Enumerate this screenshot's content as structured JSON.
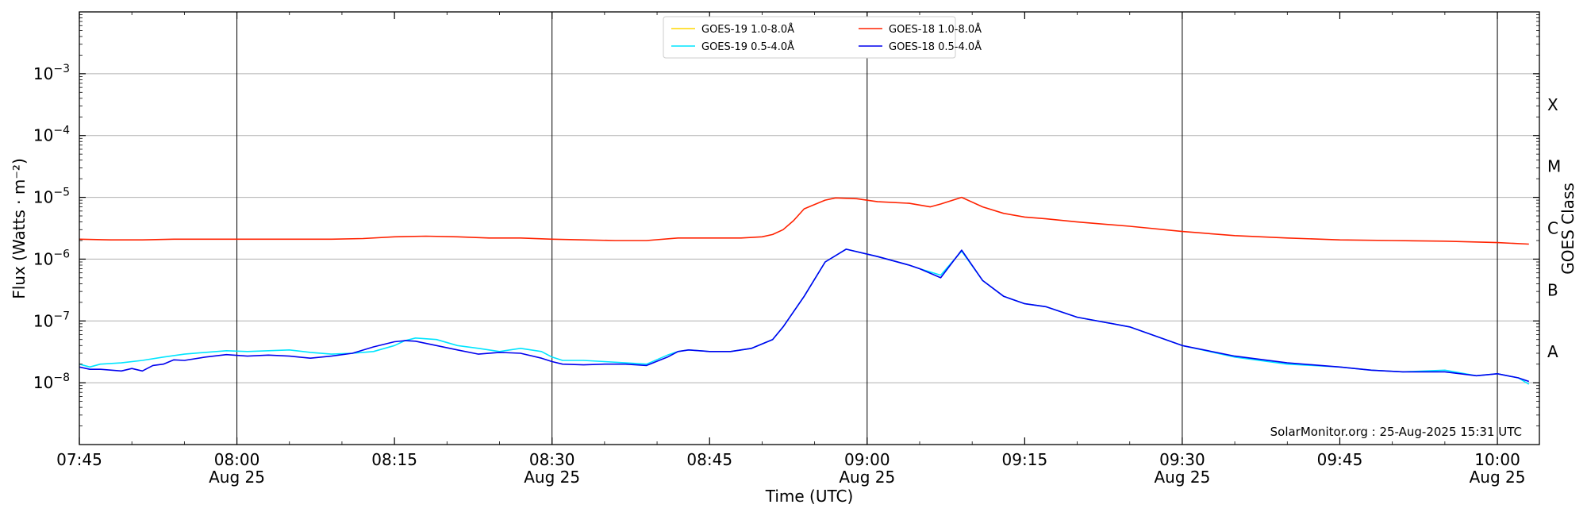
{
  "chart_data": {
    "type": "line",
    "title": "",
    "xlabel": "Time (UTC)",
    "ylabel": "Flux (Watts · m⁻²)",
    "y2label": "GOES Class",
    "yscale": "log",
    "ylim_exp": [
      -9,
      -2
    ],
    "xlim": [
      "07:45",
      "10:04"
    ],
    "grid": true,
    "legend_position": "top-center",
    "credit": "SolarMonitor.org : 25-Aug-2025 15:31 UTC",
    "y_ticks": [
      {
        "exp": -8,
        "base": "10",
        "sup": "−8"
      },
      {
        "exp": -7,
        "base": "10",
        "sup": "−7"
      },
      {
        "exp": -6,
        "base": "10",
        "sup": "−6"
      },
      {
        "exp": -5,
        "base": "10",
        "sup": "−5"
      },
      {
        "exp": -4,
        "base": "10",
        "sup": "−4"
      },
      {
        "exp": -3,
        "base": "10",
        "sup": "−3"
      }
    ],
    "x_ticks": [
      {
        "t": 0,
        "time": "07:45",
        "date": ""
      },
      {
        "t": 15,
        "time": "08:00",
        "date": "Aug 25"
      },
      {
        "t": 30,
        "time": "08:15",
        "date": ""
      },
      {
        "t": 45,
        "time": "08:30",
        "date": "Aug 25"
      },
      {
        "t": 60,
        "time": "08:45",
        "date": ""
      },
      {
        "t": 75,
        "time": "09:00",
        "date": "Aug 25"
      },
      {
        "t": 90,
        "time": "09:15",
        "date": ""
      },
      {
        "t": 105,
        "time": "09:30",
        "date": "Aug 25"
      },
      {
        "t": 120,
        "time": "09:45",
        "date": ""
      },
      {
        "t": 135,
        "time": "10:00",
        "date": "Aug 25"
      }
    ],
    "vlines_minutes": [
      15,
      45,
      75,
      105,
      135
    ],
    "goes_classes": [
      {
        "label": "A",
        "exp": -8
      },
      {
        "label": "B",
        "exp": -7
      },
      {
        "label": "C",
        "exp": -6
      },
      {
        "label": "M",
        "exp": -5
      },
      {
        "label": "X",
        "exp": -4
      }
    ],
    "legend": [
      {
        "name": "GOES-19 1.0-8.0Å",
        "color": "#ffd700"
      },
      {
        "name": "GOES-19 0.5-4.0Å",
        "color": "#00e5ff"
      },
      {
        "name": "GOES-18 1.0-8.0Å",
        "color": "#ff2200"
      },
      {
        "name": "GOES-18 0.5-4.0Å",
        "color": "#0000ee"
      }
    ],
    "series": [
      {
        "name": "GOES-18 1.0-8.0Å",
        "color": "#ff2200",
        "x": [
          0,
          3,
          6,
          9,
          12,
          15,
          18,
          21,
          24,
          27,
          30,
          33,
          36,
          39,
          42,
          45,
          48,
          51,
          54,
          57,
          60,
          63,
          65,
          66,
          67,
          68,
          69,
          71,
          72,
          74,
          76,
          79,
          80,
          81,
          82,
          84,
          86,
          88,
          90,
          92,
          95,
          100,
          105,
          110,
          115,
          120,
          125,
          130,
          135,
          138
        ],
        "y": [
          2.1e-06,
          2.05e-06,
          2.05e-06,
          2.1e-06,
          2.1e-06,
          2.1e-06,
          2.1e-06,
          2.1e-06,
          2.1e-06,
          2.15e-06,
          2.3e-06,
          2.35e-06,
          2.3e-06,
          2.2e-06,
          2.2e-06,
          2.1e-06,
          2.05e-06,
          2e-06,
          2e-06,
          2.2e-06,
          2.2e-06,
          2.2e-06,
          2.3e-06,
          2.5e-06,
          3e-06,
          4.2e-06,
          6.5e-06,
          9e-06,
          9.8e-06,
          9.5e-06,
          8.5e-06,
          8e-06,
          7.5e-06,
          7e-06,
          7.8e-06,
          1e-05,
          7e-06,
          5.5e-06,
          4.8e-06,
          4.5e-06,
          4e-06,
          3.4e-06,
          2.8e-06,
          2.4e-06,
          2.2e-06,
          2.05e-06,
          2e-06,
          1.95e-06,
          1.85e-06,
          1.75e-06
        ]
      },
      {
        "name": "GOES-19 0.5-4.0Å",
        "color": "#00e5ff",
        "x": [
          0,
          1,
          2,
          4,
          6,
          8,
          10,
          12,
          14,
          16,
          18,
          20,
          22,
          24,
          26,
          28,
          30,
          31,
          32,
          34,
          36,
          38,
          40,
          42,
          44,
          45,
          46,
          48,
          50,
          52,
          54,
          56,
          57,
          58,
          60,
          62,
          64,
          66,
          67,
          69,
          71,
          73,
          76,
          79,
          80,
          82,
          84,
          86,
          88,
          90,
          92,
          95,
          100,
          105,
          110,
          115,
          120,
          123,
          126,
          130,
          133,
          135,
          137,
          138
        ],
        "y": [
          2e-08,
          1.8e-08,
          2e-08,
          2.1e-08,
          2.3e-08,
          2.6e-08,
          2.9e-08,
          3.1e-08,
          3.3e-08,
          3.2e-08,
          3.3e-08,
          3.4e-08,
          3.1e-08,
          2.9e-08,
          3e-08,
          3.2e-08,
          4e-08,
          4.8e-08,
          5.3e-08,
          5e-08,
          4e-08,
          3.6e-08,
          3.2e-08,
          3.6e-08,
          3.2e-08,
          2.6e-08,
          2.3e-08,
          2.3e-08,
          2.2e-08,
          2.1e-08,
          2e-08,
          2.8e-08,
          3.2e-08,
          3.4e-08,
          3.2e-08,
          3.2e-08,
          3.6e-08,
          5e-08,
          8e-08,
          2.5e-07,
          9e-07,
          1.45e-06,
          1.1e-06,
          8e-07,
          7e-07,
          5.5e-07,
          1.35e-06,
          4.5e-07,
          2.5e-07,
          1.9e-07,
          1.7e-07,
          1.15e-07,
          8e-08,
          4e-08,
          2.6e-08,
          2e-08,
          1.8e-08,
          1.6e-08,
          1.5e-08,
          1.6e-08,
          1.3e-08,
          1.4e-08,
          1.2e-08,
          9.5e-09
        ]
      },
      {
        "name": "GOES-18 0.5-4.0Å",
        "color": "#0000ee",
        "x": [
          0,
          1,
          2,
          4,
          5,
          6,
          7,
          8,
          9,
          10,
          12,
          14,
          16,
          18,
          20,
          22,
          24,
          26,
          28,
          30,
          31,
          32,
          34,
          36,
          38,
          40,
          42,
          44,
          45,
          46,
          48,
          50,
          52,
          54,
          56,
          57,
          58,
          60,
          62,
          64,
          66,
          67,
          69,
          71,
          73,
          76,
          79,
          80,
          82,
          84,
          86,
          88,
          90,
          92,
          95,
          100,
          105,
          110,
          115,
          120,
          123,
          126,
          130,
          133,
          135,
          137,
          138
        ],
        "y": [
          1.8e-08,
          1.65e-08,
          1.65e-08,
          1.55e-08,
          1.7e-08,
          1.55e-08,
          1.9e-08,
          2e-08,
          2.35e-08,
          2.3e-08,
          2.6e-08,
          2.85e-08,
          2.7e-08,
          2.8e-08,
          2.7e-08,
          2.5e-08,
          2.7e-08,
          3e-08,
          3.8e-08,
          4.6e-08,
          4.8e-08,
          4.7e-08,
          4e-08,
          3.4e-08,
          2.9e-08,
          3.1e-08,
          3e-08,
          2.5e-08,
          2.2e-08,
          2e-08,
          1.95e-08,
          2e-08,
          2e-08,
          1.9e-08,
          2.6e-08,
          3.2e-08,
          3.4e-08,
          3.2e-08,
          3.2e-08,
          3.6e-08,
          5e-08,
          8e-08,
          2.5e-07,
          9e-07,
          1.45e-06,
          1.1e-06,
          8e-07,
          7e-07,
          5e-07,
          1.4e-06,
          4.5e-07,
          2.5e-07,
          1.9e-07,
          1.7e-07,
          1.15e-07,
          8e-08,
          4e-08,
          2.7e-08,
          2.1e-08,
          1.8e-08,
          1.6e-08,
          1.5e-08,
          1.5e-08,
          1.3e-08,
          1.4e-08,
          1.2e-08,
          1.05e-08
        ]
      }
    ]
  }
}
